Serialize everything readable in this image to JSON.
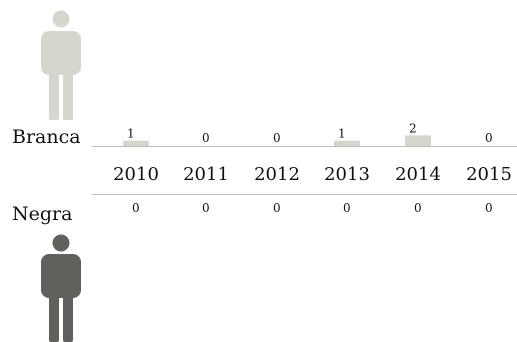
{
  "chart_data": {
    "type": "bar",
    "categories": [
      "2010",
      "2011",
      "2012",
      "2013",
      "2014",
      "2015"
    ],
    "series": [
      {
        "name": "Branca",
        "values": [
          1,
          0,
          0,
          1,
          2,
          0
        ]
      },
      {
        "name": "Negra",
        "values": [
          0,
          0,
          0,
          0,
          0,
          0
        ]
      }
    ],
    "ylim": [
      0,
      2
    ],
    "grid": false,
    "legend": "none"
  },
  "colors": {
    "branca": "#d6d6cf",
    "negra": "#5f615c",
    "bar": "#d6d6cf",
    "rule": "#bdbdb8"
  },
  "icons": {
    "branca": "person-icon",
    "negra": "person-icon"
  }
}
